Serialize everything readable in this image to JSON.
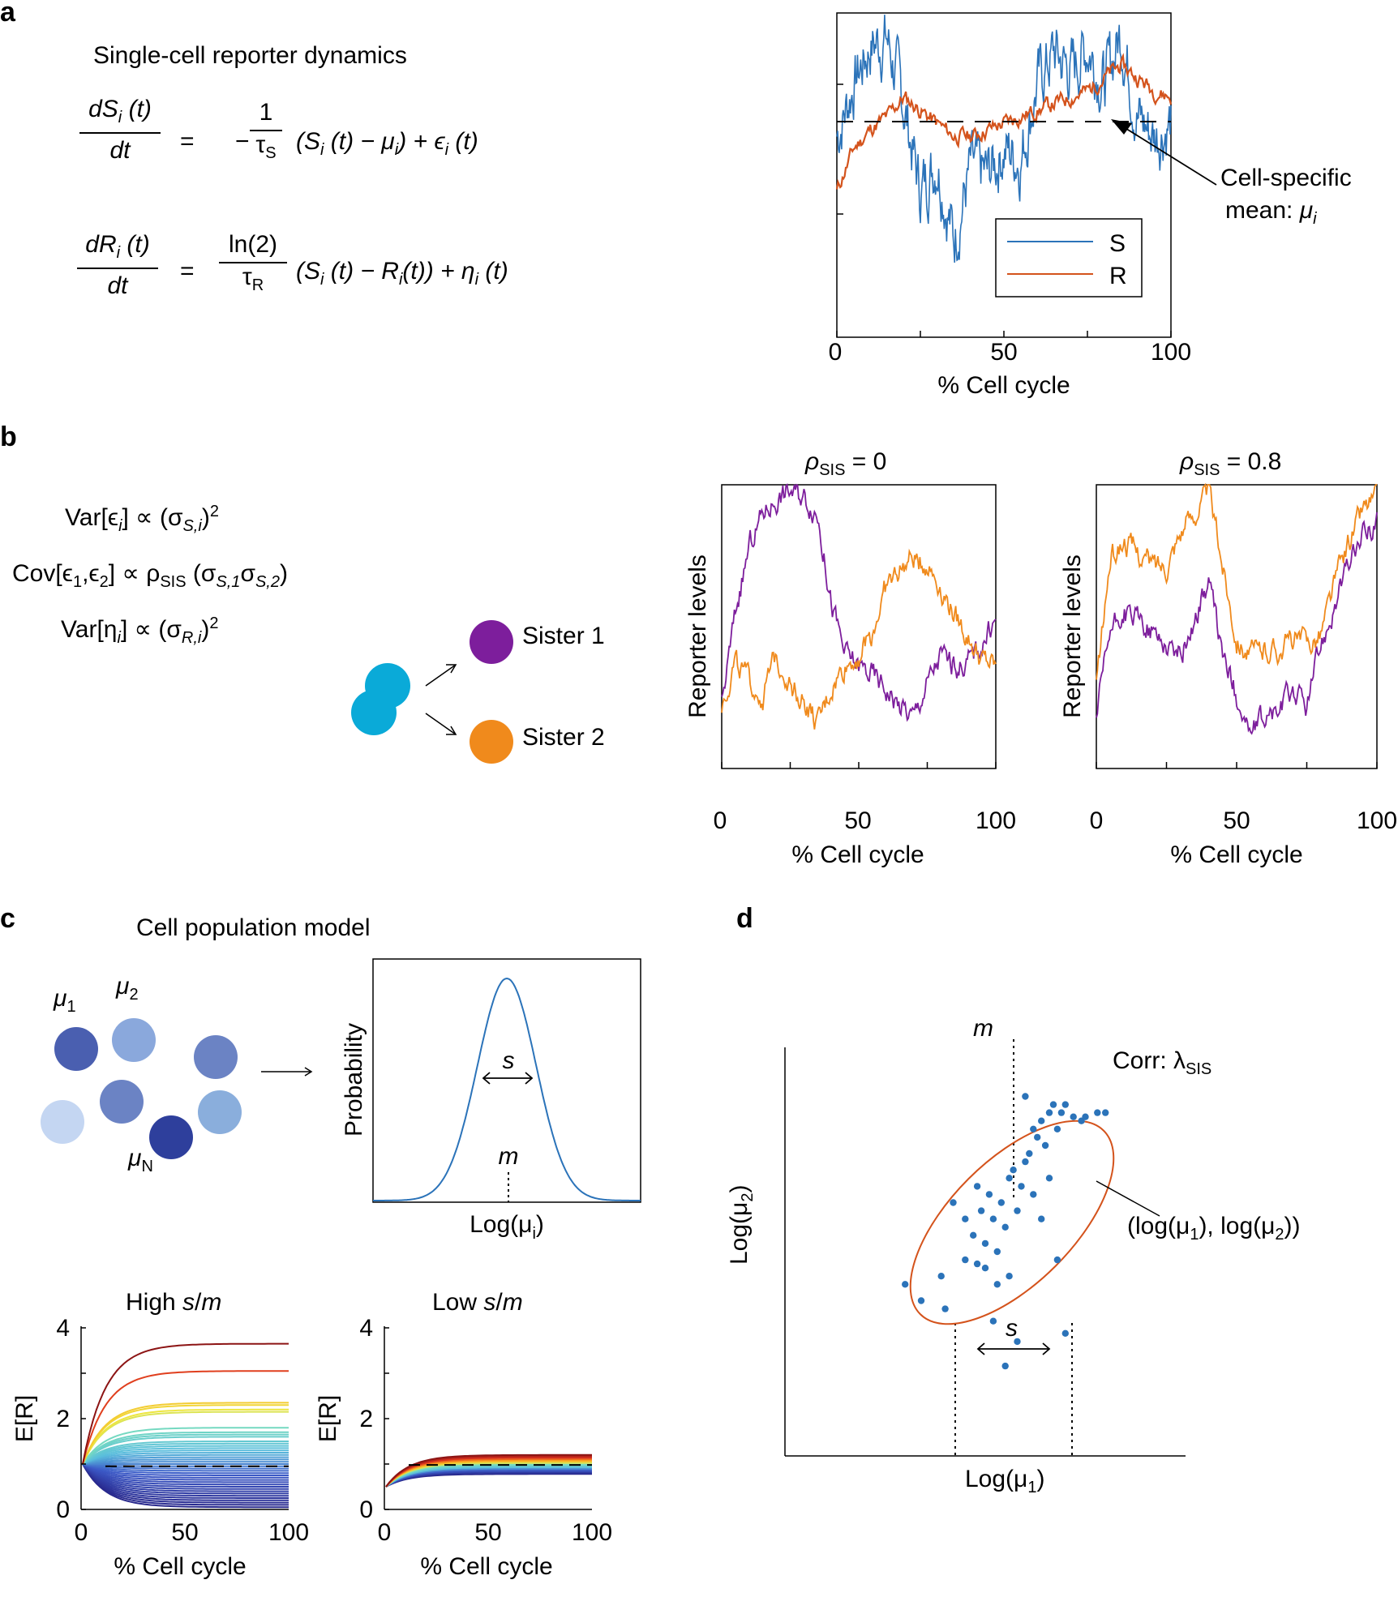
{
  "panel_labels": {
    "a": "a",
    "b": "b",
    "c": "c",
    "d": "d"
  },
  "panel_a": {
    "title": "Single-cell reporter dynamics",
    "eq1": {
      "lhs_num": "dS",
      "lhs_sub": "i",
      "lhs_tail": " (t)",
      "lhs_den": "dt",
      "eq": "=",
      "minus": "−",
      "frac_num": "1",
      "frac_den": "τ",
      "frac_den_sub": "S",
      "rhs": "(S",
      "rhs_b": " (t) − μ",
      "rhs_c": ") + ϵ",
      "rhs_d": " (t)",
      "sub": "i"
    },
    "eq2": {
      "lhs_num": "dR",
      "lhs_sub": "i",
      "lhs_tail": " (t)",
      "lhs_den": "dt",
      "eq": "=",
      "frac_num": "ln(2)",
      "frac_den": "τ",
      "frac_den_sub": "R",
      "rhs": "(S",
      "rhs_b": " (t) − R",
      "rhs_c": "(t)) + η",
      "rhs_d": " (t)",
      "sub": "i"
    },
    "annotation_line1": "Cell-specific",
    "annotation_line2": "mean: ",
    "annotation_mu": "μ",
    "annotation_sub": "i",
    "legend": [
      {
        "name": "S",
        "color": "#2b73b9"
      },
      {
        "name": "R",
        "color": "#d4531c"
      }
    ]
  },
  "panel_b": {
    "var1": {
      "a": "Var[ϵ",
      "sub": "i",
      "b": "] ∝ (σ",
      "sub2": "S,i",
      "c": ")",
      "sup": "2"
    },
    "cov": {
      "a": "Cov[ϵ",
      "sub1": "1",
      "b": ",ϵ",
      "sub2": "2",
      "c": "] ∝ ρ",
      "sub3": "SIS",
      "d": " (σ",
      "sub4": "S,1",
      "e": "σ",
      "sub5": "S,2",
      "f": ")"
    },
    "var2": {
      "a": "Var[η",
      "sub": "i",
      "b": "] ∝ (σ",
      "sub2": "R,i",
      "c": ")",
      "sup": "2"
    },
    "sister1": "Sister 1",
    "sister2": "Sister 2",
    "plot1_title": {
      "rho": "ρ",
      "sub": "SIS",
      "rest": " = 0"
    },
    "plot2_title": {
      "rho": "ρ",
      "sub": "SIS",
      "rest": " = 0.8"
    },
    "ylabel": "Reporter levels",
    "colors": {
      "sister1": "#7d1e9c",
      "sister2": "#f08a1c",
      "mother": "#0aaad8"
    }
  },
  "panel_c": {
    "title": "Cell population model",
    "mu_labels": [
      {
        "t": "μ",
        "s": "1"
      },
      {
        "t": "μ",
        "s": "2"
      },
      {
        "t": "μ",
        "s": "N"
      }
    ],
    "prob_ylabel": "Probability",
    "prob_xlabel": {
      "a": "Log(μ",
      "sub": "i",
      "b": ")"
    },
    "s_label": "s",
    "m_label": "m",
    "high_title": {
      "a": "High ",
      "b": "s",
      "c": "/",
      "d": "m"
    },
    "low_title": {
      "a": "Low ",
      "b": "s",
      "c": "/",
      "d": "m"
    },
    "er_ylabel": "E[R]"
  },
  "panel_d": {
    "m_label": "m",
    "corr": {
      "a": "Corr: λ",
      "sub": "SIS"
    },
    "point_label": {
      "a": "(log(μ",
      "s1": "1",
      "b": "), log(μ",
      "s2": "2",
      "c": "))"
    },
    "ylabel": {
      "a": "Log(μ",
      "sub": "2",
      "b": ")"
    },
    "xlabel": {
      "a": "Log(μ",
      "sub": "1",
      "b": ")"
    },
    "s_label": "s",
    "colors": {
      "points": "#2b73b9",
      "ellipse": "#d4531c"
    }
  },
  "chart_data": [
    {
      "id": "a-traces",
      "type": "line",
      "xlabel": "% Cell cycle",
      "ylabel": "",
      "xlim": [
        0,
        100
      ],
      "x_ticks": [
        "0",
        "50",
        "100"
      ],
      "series": [
        {
          "name": "S",
          "color": "#2b73b9",
          "x": [
            0,
            5,
            10,
            15,
            20,
            25,
            30,
            35,
            40,
            45,
            50,
            55,
            60,
            65,
            70,
            75,
            80,
            85,
            90,
            95,
            100
          ],
          "y": [
            0.62,
            0.78,
            0.9,
            0.92,
            0.72,
            0.45,
            0.55,
            0.3,
            0.52,
            0.5,
            0.58,
            0.55,
            0.78,
            0.88,
            0.82,
            0.9,
            0.78,
            0.94,
            0.68,
            0.62,
            0.66
          ]
        },
        {
          "name": "R",
          "color": "#d4531c",
          "x": [
            0,
            5,
            10,
            15,
            20,
            25,
            30,
            35,
            40,
            45,
            50,
            55,
            60,
            65,
            70,
            75,
            80,
            85,
            90,
            95,
            100
          ],
          "y": [
            0.45,
            0.58,
            0.64,
            0.68,
            0.74,
            0.7,
            0.66,
            0.62,
            0.62,
            0.64,
            0.66,
            0.68,
            0.7,
            0.72,
            0.74,
            0.76,
            0.8,
            0.84,
            0.8,
            0.76,
            0.74
          ]
        }
      ],
      "reference_line": {
        "y": 0.75,
        "style": "dashed",
        "label": "Cell-specific mean: μi"
      }
    },
    {
      "id": "b-rho0",
      "type": "line",
      "title": "ρSIS = 0",
      "xlabel": "% Cell cycle",
      "ylabel": "Reporter levels",
      "xlim": [
        0,
        100
      ],
      "x_ticks": [
        "0",
        "50",
        "100"
      ],
      "series": [
        {
          "name": "Sister 1",
          "color": "#7d1e9c",
          "x": [
            0,
            5,
            10,
            15,
            20,
            25,
            30,
            35,
            40,
            45,
            50,
            55,
            60,
            65,
            70,
            75,
            80,
            85,
            90,
            95,
            100
          ],
          "y": [
            0.22,
            0.55,
            0.78,
            0.9,
            0.95,
            0.98,
            0.96,
            0.9,
            0.58,
            0.4,
            0.36,
            0.33,
            0.28,
            0.22,
            0.18,
            0.3,
            0.4,
            0.36,
            0.38,
            0.44,
            0.52
          ]
        },
        {
          "name": "Sister 2",
          "color": "#f08a1c",
          "x": [
            0,
            5,
            10,
            15,
            20,
            25,
            30,
            35,
            40,
            45,
            50,
            55,
            60,
            65,
            70,
            75,
            80,
            85,
            90,
            95,
            100
          ],
          "y": [
            0.22,
            0.38,
            0.3,
            0.25,
            0.4,
            0.3,
            0.24,
            0.15,
            0.28,
            0.36,
            0.4,
            0.48,
            0.64,
            0.7,
            0.74,
            0.72,
            0.64,
            0.54,
            0.46,
            0.38,
            0.36
          ]
        }
      ]
    },
    {
      "id": "b-rho08",
      "type": "line",
      "title": "ρSIS = 0.8",
      "xlabel": "% Cell cycle",
      "ylabel": "Reporter levels",
      "xlim": [
        0,
        100
      ],
      "x_ticks": [
        "0",
        "50",
        "100"
      ],
      "series": [
        {
          "name": "Sister 1",
          "color": "#7d1e9c",
          "x": [
            0,
            5,
            10,
            15,
            20,
            25,
            30,
            35,
            40,
            45,
            50,
            55,
            60,
            65,
            70,
            75,
            80,
            85,
            90,
            95,
            100
          ],
          "y": [
            0.18,
            0.48,
            0.55,
            0.52,
            0.48,
            0.44,
            0.4,
            0.52,
            0.66,
            0.4,
            0.26,
            0.12,
            0.18,
            0.2,
            0.28,
            0.22,
            0.44,
            0.58,
            0.72,
            0.82,
            0.88
          ]
        },
        {
          "name": "Sister 2",
          "color": "#f08a1c",
          "x": [
            0,
            5,
            10,
            15,
            20,
            25,
            30,
            35,
            40,
            45,
            50,
            55,
            60,
            65,
            70,
            75,
            80,
            85,
            90,
            95,
            100
          ],
          "y": [
            0.3,
            0.74,
            0.8,
            0.76,
            0.72,
            0.72,
            0.84,
            0.9,
            0.98,
            0.72,
            0.46,
            0.4,
            0.42,
            0.42,
            0.46,
            0.44,
            0.48,
            0.66,
            0.8,
            0.92,
            0.96
          ]
        }
      ]
    },
    {
      "id": "c-probability",
      "type": "line",
      "xlabel": "Log(μi)",
      "ylabel": "Probability",
      "series": [
        {
          "name": "density",
          "color": "#2b73b9",
          "distribution": "gaussian",
          "mean": 0.5,
          "sd": 0.11
        }
      ]
    },
    {
      "id": "c-high",
      "type": "line",
      "title": "High s/m",
      "xlabel": "% Cell cycle",
      "ylabel": "E[R]",
      "xlim": [
        0,
        100
      ],
      "ylim": [
        0,
        4
      ],
      "x_ticks": [
        "0",
        "50",
        "100"
      ],
      "y_ticks": [
        "0",
        "2",
        "4"
      ],
      "plateaus": [
        3.65,
        3.05,
        2.35,
        2.3,
        2.2,
        2.15,
        1.8,
        1.7,
        1.65,
        1.6,
        1.5,
        1.45,
        1.4,
        1.35,
        1.3,
        1.25,
        1.2,
        1.15,
        1.1,
        1.05,
        1.0,
        0.95,
        0.9,
        0.85,
        0.8,
        0.75,
        0.7,
        0.65,
        0.6,
        0.55,
        0.5,
        0.45,
        0.4,
        0.35,
        0.3,
        0.25,
        0.2,
        0.15,
        0.1,
        0.05
      ],
      "mean_line": {
        "y": 0.95,
        "style": "dashed"
      },
      "start_value": 1.0
    },
    {
      "id": "c-low",
      "type": "line",
      "title": "Low s/m",
      "xlabel": "% Cell cycle",
      "ylabel": "E[R]",
      "xlim": [
        0,
        100
      ],
      "ylim": [
        0,
        4
      ],
      "x_ticks": [
        "0",
        "50",
        "100"
      ],
      "y_ticks": [
        "0",
        "2",
        "4"
      ],
      "plateaus": [
        1.2,
        1.17,
        1.14,
        1.11,
        1.08,
        1.05,
        1.02,
        0.99,
        0.96,
        0.93,
        0.9,
        0.87,
        0.84,
        0.81,
        0.78
      ],
      "mean_line": {
        "y": 0.98,
        "style": "dashed"
      },
      "start_value": 0.5
    },
    {
      "id": "d-scatter",
      "type": "scatter",
      "xlabel": "Log(μ1)",
      "ylabel": "Log(μ2)",
      "points": [
        [
          0.3,
          0.42
        ],
        [
          0.34,
          0.38
        ],
        [
          0.4,
          0.36
        ],
        [
          0.39,
          0.44
        ],
        [
          0.42,
          0.62
        ],
        [
          0.45,
          0.58
        ],
        [
          0.47,
          0.54
        ],
        [
          0.48,
          0.66
        ],
        [
          0.49,
          0.6
        ],
        [
          0.5,
          0.52
        ],
        [
          0.51,
          0.64
        ],
        [
          0.52,
          0.58
        ],
        [
          0.53,
          0.5
        ],
        [
          0.54,
          0.62
        ],
        [
          0.55,
          0.56
        ],
        [
          0.56,
          0.68
        ],
        [
          0.57,
          0.7
        ],
        [
          0.58,
          0.6
        ],
        [
          0.59,
          0.66
        ],
        [
          0.6,
          0.72
        ],
        [
          0.61,
          0.74
        ],
        [
          0.62,
          0.8
        ],
        [
          0.63,
          0.78
        ],
        [
          0.64,
          0.82
        ],
        [
          0.65,
          0.76
        ],
        [
          0.66,
          0.84
        ],
        [
          0.67,
          0.86
        ],
        [
          0.68,
          0.8
        ],
        [
          0.69,
          0.84
        ],
        [
          0.7,
          0.86
        ],
        [
          0.72,
          0.83
        ],
        [
          0.74,
          0.82
        ],
        [
          0.75,
          0.83
        ],
        [
          0.78,
          0.84
        ],
        [
          0.8,
          0.84
        ],
        [
          0.6,
          0.88
        ],
        [
          0.66,
          0.68
        ],
        [
          0.5,
          0.46
        ],
        [
          0.56,
          0.44
        ],
        [
          0.52,
          0.33
        ],
        [
          0.58,
          0.28
        ],
        [
          0.55,
          0.22
        ],
        [
          0.68,
          0.48
        ],
        [
          0.7,
          0.3
        ],
        [
          0.45,
          0.48
        ],
        [
          0.48,
          0.47
        ],
        [
          0.53,
          0.42
        ],
        [
          0.62,
          0.64
        ],
        [
          0.64,
          0.58
        ]
      ]
    }
  ]
}
